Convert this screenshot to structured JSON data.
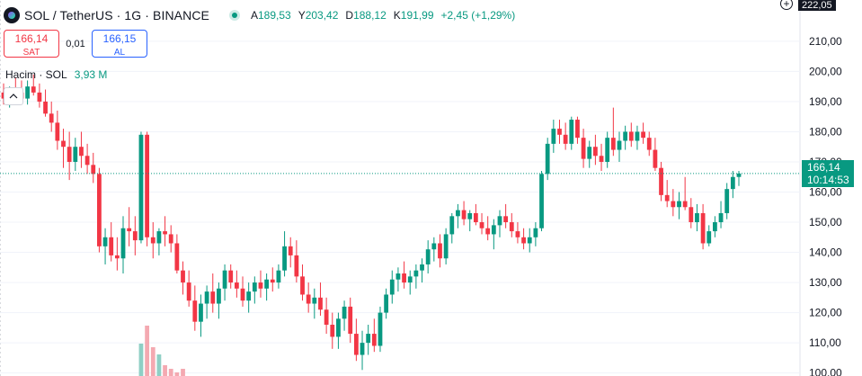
{
  "header": {
    "symbol_title": "SOL / TetherUS · 1G · BINANCE",
    "ohlc": [
      {
        "key": "A",
        "value": "189,53"
      },
      {
        "key": "Y",
        "value": "203,42"
      },
      {
        "key": "D",
        "value": "188,12"
      },
      {
        "key": "K",
        "value": "191,99"
      }
    ],
    "change": "+2,45 (+1,29%)"
  },
  "trade": {
    "sell_price": "166,14",
    "sell_label": "SAT",
    "spread": "0,01",
    "buy_price": "166,15",
    "buy_label": "AL"
  },
  "volume_legend": {
    "label": "Hacim · SOL",
    "value": "3,93 M"
  },
  "price_scale": {
    "top_label": "222,05",
    "current_price": "166,14",
    "countdown": "10:14:53"
  },
  "colors": {
    "up": "#089981",
    "down": "#f23645",
    "up_vol": "#8fcfc5",
    "down_vol": "#f4a9b1"
  },
  "icons": [
    "sol-logo-icon",
    "live-status-icon",
    "plus-icon",
    "chevron-up-icon"
  ],
  "chart_data": {
    "type": "candlestick",
    "y_axis": {
      "ticks": [
        210,
        200,
        190,
        180,
        170,
        160,
        150,
        140,
        130,
        120,
        110,
        100
      ],
      "tick_labels": [
        "210,00",
        "200,00",
        "190,00",
        "180,00",
        "170,00",
        "160,00",
        "150,00",
        "140,00",
        "130,00",
        "120,00",
        "110,00",
        "100,00"
      ],
      "range": [
        99,
        221
      ]
    },
    "current_price": 166.14,
    "grid": true,
    "candles": [
      [
        193,
        196,
        189,
        191
      ],
      [
        191,
        195,
        188,
        194
      ],
      [
        194,
        198,
        191,
        193
      ],
      [
        193,
        197,
        190,
        191
      ],
      [
        191,
        197,
        189,
        195
      ],
      [
        195,
        199,
        192,
        193
      ],
      [
        193,
        196,
        188,
        190
      ],
      [
        190,
        194,
        185,
        186
      ],
      [
        186,
        190,
        180,
        183
      ],
      [
        183,
        187,
        174,
        177
      ],
      [
        177,
        181,
        168,
        175
      ],
      [
        175,
        180,
        164,
        170
      ],
      [
        170,
        178,
        167,
        175
      ],
      [
        175,
        180,
        168,
        172
      ],
      [
        172,
        176,
        166,
        169
      ],
      [
        169,
        173,
        163,
        166
      ],
      [
        166,
        168,
        140,
        142
      ],
      [
        142,
        148,
        136,
        145
      ],
      [
        145,
        150,
        137,
        139
      ],
      [
        139,
        145,
        134,
        138
      ],
      [
        138,
        152,
        133,
        148
      ],
      [
        148,
        155,
        142,
        147
      ],
      [
        147,
        152,
        139,
        144
      ],
      [
        144,
        180,
        143,
        179
      ],
      [
        179,
        180,
        142,
        145
      ],
      [
        145,
        150,
        138,
        143
      ],
      [
        143,
        148,
        139,
        147
      ],
      [
        147,
        152,
        142,
        146
      ],
      [
        146,
        149,
        140,
        143
      ],
      [
        143,
        146,
        133,
        134
      ],
      [
        134,
        137,
        126,
        130
      ],
      [
        130,
        134,
        122,
        124
      ],
      [
        124,
        129,
        114,
        117
      ],
      [
        117,
        126,
        112,
        123
      ],
      [
        123,
        129,
        118,
        127
      ],
      [
        127,
        133,
        120,
        123
      ],
      [
        123,
        130,
        118,
        128
      ],
      [
        128,
        136,
        124,
        134
      ],
      [
        134,
        136,
        128,
        130
      ],
      [
        130,
        134,
        125,
        128
      ],
      [
        128,
        132,
        122,
        124
      ],
      [
        124,
        130,
        120,
        127
      ],
      [
        127,
        132,
        123,
        130
      ],
      [
        130,
        134,
        125,
        128
      ],
      [
        128,
        133,
        124,
        131
      ],
      [
        131,
        135,
        127,
        130
      ],
      [
        130,
        136,
        128,
        134
      ],
      [
        134,
        147,
        132,
        142
      ],
      [
        142,
        145,
        135,
        139
      ],
      [
        139,
        144,
        130,
        132
      ],
      [
        132,
        136,
        124,
        126
      ],
      [
        126,
        130,
        120,
        123
      ],
      [
        123,
        128,
        118,
        125
      ],
      [
        125,
        130,
        119,
        121
      ],
      [
        121,
        125,
        113,
        116
      ],
      [
        116,
        120,
        108,
        112
      ],
      [
        112,
        120,
        108,
        118
      ],
      [
        118,
        124,
        114,
        122
      ],
      [
        122,
        125,
        110,
        113
      ],
      [
        113,
        118,
        104,
        106
      ],
      [
        106,
        114,
        101,
        110
      ],
      [
        110,
        116,
        106,
        113
      ],
      [
        113,
        118,
        107,
        109
      ],
      [
        109,
        122,
        107,
        120
      ],
      [
        120,
        128,
        118,
        126
      ],
      [
        126,
        134,
        123,
        131
      ],
      [
        131,
        135,
        127,
        133
      ],
      [
        133,
        137,
        128,
        130
      ],
      [
        130,
        134,
        126,
        132
      ],
      [
        132,
        136,
        128,
        134
      ],
      [
        134,
        138,
        130,
        136
      ],
      [
        136,
        144,
        133,
        141
      ],
      [
        141,
        145,
        137,
        143
      ],
      [
        143,
        146,
        135,
        138
      ],
      [
        138,
        148,
        136,
        146
      ],
      [
        146,
        153,
        143,
        152
      ],
      [
        152,
        156,
        148,
        154
      ],
      [
        154,
        157,
        149,
        151
      ],
      [
        151,
        154,
        147,
        153
      ],
      [
        153,
        156,
        149,
        150
      ],
      [
        150,
        153,
        146,
        148
      ],
      [
        148,
        152,
        144,
        146
      ],
      [
        146,
        151,
        141,
        149
      ],
      [
        149,
        154,
        145,
        152
      ],
      [
        152,
        156,
        148,
        150
      ],
      [
        150,
        153,
        145,
        147
      ],
      [
        147,
        150,
        143,
        145
      ],
      [
        145,
        148,
        141,
        143
      ],
      [
        143,
        148,
        140,
        145
      ],
      [
        145,
        150,
        142,
        148
      ],
      [
        148,
        167,
        147,
        166
      ],
      [
        166,
        178,
        164,
        176
      ],
      [
        176,
        184,
        173,
        181
      ],
      [
        181,
        184,
        176,
        179
      ],
      [
        179,
        183,
        174,
        176
      ],
      [
        176,
        185,
        174,
        184
      ],
      [
        184,
        185,
        176,
        178
      ],
      [
        178,
        181,
        168,
        171
      ],
      [
        171,
        177,
        168,
        175
      ],
      [
        175,
        179,
        169,
        172
      ],
      [
        172,
        176,
        167,
        170
      ],
      [
        170,
        180,
        168,
        178
      ],
      [
        178,
        188,
        172,
        174
      ],
      [
        174,
        180,
        170,
        177
      ],
      [
        177,
        182,
        174,
        180
      ],
      [
        180,
        183,
        175,
        177
      ],
      [
        177,
        182,
        174,
        180
      ],
      [
        180,
        183,
        176,
        178
      ],
      [
        178,
        180,
        172,
        174
      ],
      [
        174,
        178,
        167,
        168
      ],
      [
        168,
        170,
        157,
        159
      ],
      [
        159,
        164,
        155,
        157
      ],
      [
        157,
        161,
        152,
        155
      ],
      [
        155,
        160,
        151,
        157
      ],
      [
        157,
        165,
        154,
        155
      ],
      [
        155,
        158,
        148,
        150
      ],
      [
        150,
        156,
        147,
        153
      ],
      [
        153,
        156,
        141,
        143
      ],
      [
        143,
        149,
        142,
        147
      ],
      [
        147,
        152,
        145,
        150
      ],
      [
        150,
        157,
        148,
        153
      ],
      [
        153,
        163,
        151,
        161
      ],
      [
        161,
        167,
        158,
        165
      ],
      [
        165,
        167,
        162,
        166.14
      ]
    ],
    "volume_scale_max": 30,
    "volumes": [
      0,
      0,
      0,
      0,
      0,
      0,
      0,
      0,
      0,
      0,
      0,
      0,
      0,
      0,
      0,
      0,
      0,
      0,
      0,
      0,
      0,
      0,
      0,
      9,
      14,
      8,
      6,
      3,
      2,
      1,
      2,
      0,
      0,
      0,
      0,
      0,
      0,
      0,
      0,
      0,
      0,
      0,
      0,
      0,
      0,
      0,
      0,
      0,
      0,
      0,
      0,
      0,
      0,
      0,
      0,
      0,
      0,
      0,
      0,
      0,
      0,
      0,
      0,
      0,
      0,
      0,
      0,
      0,
      0,
      0,
      0,
      0,
      0,
      0,
      0,
      0,
      0,
      0,
      0,
      0,
      0,
      0,
      0,
      0,
      0,
      0,
      0,
      0,
      0,
      0,
      0,
      0,
      0,
      0,
      0,
      0,
      0,
      0,
      0,
      0,
      0,
      0,
      0,
      0,
      0,
      0,
      0,
      0,
      0,
      0,
      0,
      0,
      0,
      0,
      0,
      0,
      0,
      0,
      0,
      0,
      0,
      0,
      0,
      0
    ]
  }
}
